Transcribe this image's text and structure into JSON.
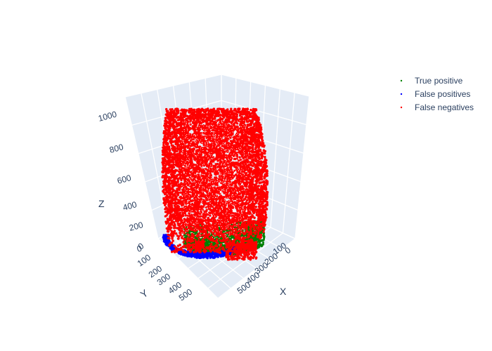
{
  "chart_data": {
    "type": "scatter",
    "legend_placement": "top-right",
    "grid": true,
    "colors": {
      "true_positive": "#008000",
      "false_positives": "#0000ff",
      "false_negatives": "#ff0000",
      "scene_wall": "#e5ecf6",
      "grid_line": "#ffffff",
      "text": "#2a3f5f"
    },
    "axes": {
      "x": {
        "title": "X",
        "range": [
          0,
          550
        ],
        "ticks": [
          "0",
          "100",
          "200",
          "300",
          "400",
          "500"
        ]
      },
      "y": {
        "title": "Y",
        "range": [
          0,
          550
        ],
        "ticks": [
          "0",
          "100",
          "200",
          "300",
          "400",
          "500"
        ]
      },
      "z": {
        "title": "Z",
        "range": [
          0,
          1050
        ],
        "ticks": [
          "0",
          "200",
          "400",
          "600",
          "800",
          "1000"
        ]
      }
    },
    "series": [
      {
        "name": "True positive",
        "key": "true_positive"
      },
      {
        "name": "False positives",
        "key": "false_positives"
      },
      {
        "name": "False negatives",
        "key": "false_negatives"
      }
    ]
  }
}
